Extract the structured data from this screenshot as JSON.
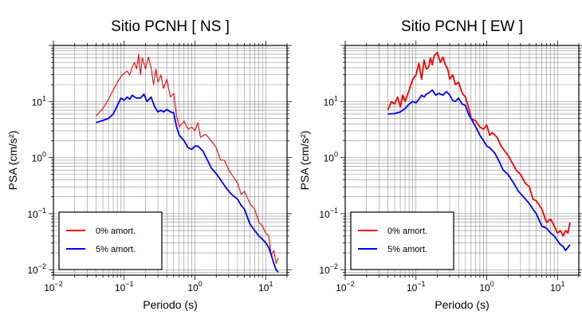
{
  "chart_data": [
    {
      "type": "line",
      "title": "Sitio PCNH [ NS ]",
      "xlabel": "Periodo (s)",
      "ylabel": "PSA (cm/s²)",
      "xscale": "log",
      "yscale": "log",
      "xlim": [
        0.01,
        20
      ],
      "ylim": [
        0.008,
        100
      ],
      "grid": true,
      "legend_position": "bottom-left",
      "x_ticks": [
        {
          "base": "10",
          "exp": "−2"
        },
        {
          "base": "10",
          "exp": "−1"
        },
        {
          "base": "10",
          "exp": "0"
        },
        {
          "base": "10",
          "exp": "1"
        }
      ],
      "y_ticks": [
        {
          "base": "10",
          "exp": "−2"
        },
        {
          "base": "10",
          "exp": "−1"
        },
        {
          "base": "10",
          "exp": "0"
        },
        {
          "base": "10",
          "exp": "1"
        }
      ],
      "series": [
        {
          "name": "0% amort.",
          "color": "#ff0000",
          "x": [
            0.04,
            0.045,
            0.05,
            0.06,
            0.07,
            0.08,
            0.09,
            0.1,
            0.11,
            0.12,
            0.13,
            0.14,
            0.15,
            0.16,
            0.17,
            0.18,
            0.2,
            0.22,
            0.24,
            0.26,
            0.28,
            0.3,
            0.33,
            0.36,
            0.4,
            0.45,
            0.5,
            0.55,
            0.6,
            0.7,
            0.8,
            0.9,
            1.0,
            1.1,
            1.2,
            1.4,
            1.6,
            1.8,
            2.0,
            2.3,
            2.6,
            3.0,
            3.5,
            4.0,
            4.5,
            5.0,
            6.0,
            7.0,
            8.0,
            9.0,
            10.0,
            11.0,
            12.0,
            13.0,
            14.0,
            15.0
          ],
          "y": [
            5.5,
            6.5,
            7.5,
            11,
            16,
            22,
            28,
            32,
            35,
            30,
            42,
            50,
            38,
            70,
            30,
            60,
            38,
            62,
            40,
            20,
            38,
            22,
            30,
            17,
            25,
            12,
            14,
            5.5,
            3.5,
            4.5,
            3.2,
            3.5,
            3.0,
            4.2,
            2.3,
            2.6,
            2.2,
            1.8,
            1.5,
            0.9,
            0.9,
            0.6,
            0.45,
            0.35,
            0.22,
            0.25,
            0.15,
            0.12,
            0.07,
            0.06,
            0.045,
            0.04,
            0.018,
            0.022,
            0.013,
            0.016
          ]
        },
        {
          "name": "5% amort.",
          "color": "#0000ff",
          "x": [
            0.04,
            0.05,
            0.06,
            0.07,
            0.08,
            0.09,
            0.1,
            0.11,
            0.12,
            0.13,
            0.14,
            0.15,
            0.17,
            0.19,
            0.21,
            0.24,
            0.27,
            0.3,
            0.33,
            0.36,
            0.4,
            0.45,
            0.5,
            0.55,
            0.6,
            0.7,
            0.8,
            0.9,
            1.0,
            1.1,
            1.3,
            1.5,
            1.7,
            2.0,
            2.4,
            2.8,
            3.3,
            4.0,
            4.5,
            5.0,
            6.0,
            7.0,
            8.0,
            9.0,
            10.0,
            11.0,
            12.0,
            13.0,
            14.0,
            15.0
          ],
          "y": [
            4.2,
            4.6,
            5.0,
            6.0,
            8.5,
            11.5,
            10.5,
            12,
            11,
            13,
            12,
            11.5,
            11.5,
            13.5,
            10,
            12,
            8,
            6.5,
            7,
            6.5,
            7.2,
            6.5,
            6.3,
            3.5,
            2.5,
            2.0,
            1.5,
            1.4,
            1.6,
            1.6,
            1.3,
            0.9,
            0.65,
            0.52,
            0.37,
            0.28,
            0.22,
            0.18,
            0.14,
            0.12,
            0.065,
            0.05,
            0.04,
            0.035,
            0.03,
            0.025,
            0.018,
            0.013,
            0.01,
            0.009
          ]
        }
      ]
    },
    {
      "type": "line",
      "title": "Sitio PCNH [ EW ]",
      "xlabel": "Periodo (s)",
      "ylabel": "PSA (cm/s²)",
      "xscale": "log",
      "yscale": "log",
      "xlim": [
        0.01,
        20
      ],
      "ylim": [
        0.008,
        100
      ],
      "grid": true,
      "legend_position": "bottom-left",
      "x_ticks": [
        {
          "base": "10",
          "exp": "−2"
        },
        {
          "base": "10",
          "exp": "−1"
        },
        {
          "base": "10",
          "exp": "0"
        },
        {
          "base": "10",
          "exp": "1"
        }
      ],
      "y_ticks": [
        {
          "base": "10",
          "exp": "−2"
        },
        {
          "base": "10",
          "exp": "−1"
        },
        {
          "base": "10",
          "exp": "0"
        },
        {
          "base": "10",
          "exp": "1"
        }
      ],
      "series": [
        {
          "name": "0% amort.",
          "color": "#ff0000",
          "x": [
            0.04,
            0.045,
            0.05,
            0.055,
            0.06,
            0.065,
            0.07,
            0.08,
            0.09,
            0.1,
            0.11,
            0.12,
            0.13,
            0.14,
            0.15,
            0.16,
            0.17,
            0.18,
            0.2,
            0.22,
            0.24,
            0.26,
            0.28,
            0.3,
            0.33,
            0.36,
            0.4,
            0.45,
            0.5,
            0.55,
            0.6,
            0.7,
            0.8,
            0.9,
            1.0,
            1.1,
            1.2,
            1.4,
            1.6,
            1.8,
            2.0,
            2.3,
            2.6,
            3.0,
            3.5,
            4.0,
            4.5,
            5.0,
            6.0,
            7.0,
            8.0,
            9.0,
            10.0,
            11.0,
            12.0,
            13.0,
            14.0,
            15.0
          ],
          "y": [
            7,
            10,
            9,
            12,
            8,
            13,
            10,
            16,
            25,
            30,
            48,
            25,
            55,
            38,
            40,
            60,
            45,
            65,
            75,
            50,
            62,
            45,
            38,
            25,
            30,
            20,
            22,
            14,
            12,
            8,
            5,
            4.5,
            3.5,
            3.2,
            3.8,
            2.5,
            2.8,
            2.3,
            1.6,
            1.3,
            1.1,
            0.8,
            0.6,
            0.5,
            0.35,
            0.3,
            0.18,
            0.17,
            0.12,
            0.07,
            0.08,
            0.06,
            0.045,
            0.05,
            0.04,
            0.05,
            0.045,
            0.07
          ]
        },
        {
          "name": "5% amort.",
          "color": "#0000ff",
          "x": [
            0.04,
            0.05,
            0.06,
            0.07,
            0.08,
            0.09,
            0.1,
            0.11,
            0.12,
            0.13,
            0.14,
            0.15,
            0.17,
            0.19,
            0.21,
            0.24,
            0.27,
            0.3,
            0.33,
            0.36,
            0.4,
            0.45,
            0.5,
            0.55,
            0.6,
            0.7,
            0.8,
            0.9,
            1.0,
            1.1,
            1.3,
            1.5,
            1.7,
            2.0,
            2.4,
            2.8,
            3.3,
            4.0,
            4.5,
            5.0,
            6.0,
            7.0,
            8.0,
            9.0,
            10.0,
            11.0,
            12.0,
            13.0,
            14.0,
            15.0
          ],
          "y": [
            6.0,
            6.1,
            6.5,
            7.5,
            9,
            10,
            9.5,
            11,
            13,
            12,
            13.5,
            14,
            16,
            13,
            14,
            13,
            15,
            13,
            10.5,
            10,
            11.5,
            9,
            8.5,
            6,
            5,
            3.5,
            2.5,
            2.0,
            1.6,
            1.5,
            1.2,
            0.85,
            0.6,
            0.5,
            0.35,
            0.25,
            0.2,
            0.15,
            0.12,
            0.1,
            0.06,
            0.055,
            0.045,
            0.04,
            0.033,
            0.028,
            0.026,
            0.022,
            0.025,
            0.028
          ]
        }
      ]
    }
  ]
}
